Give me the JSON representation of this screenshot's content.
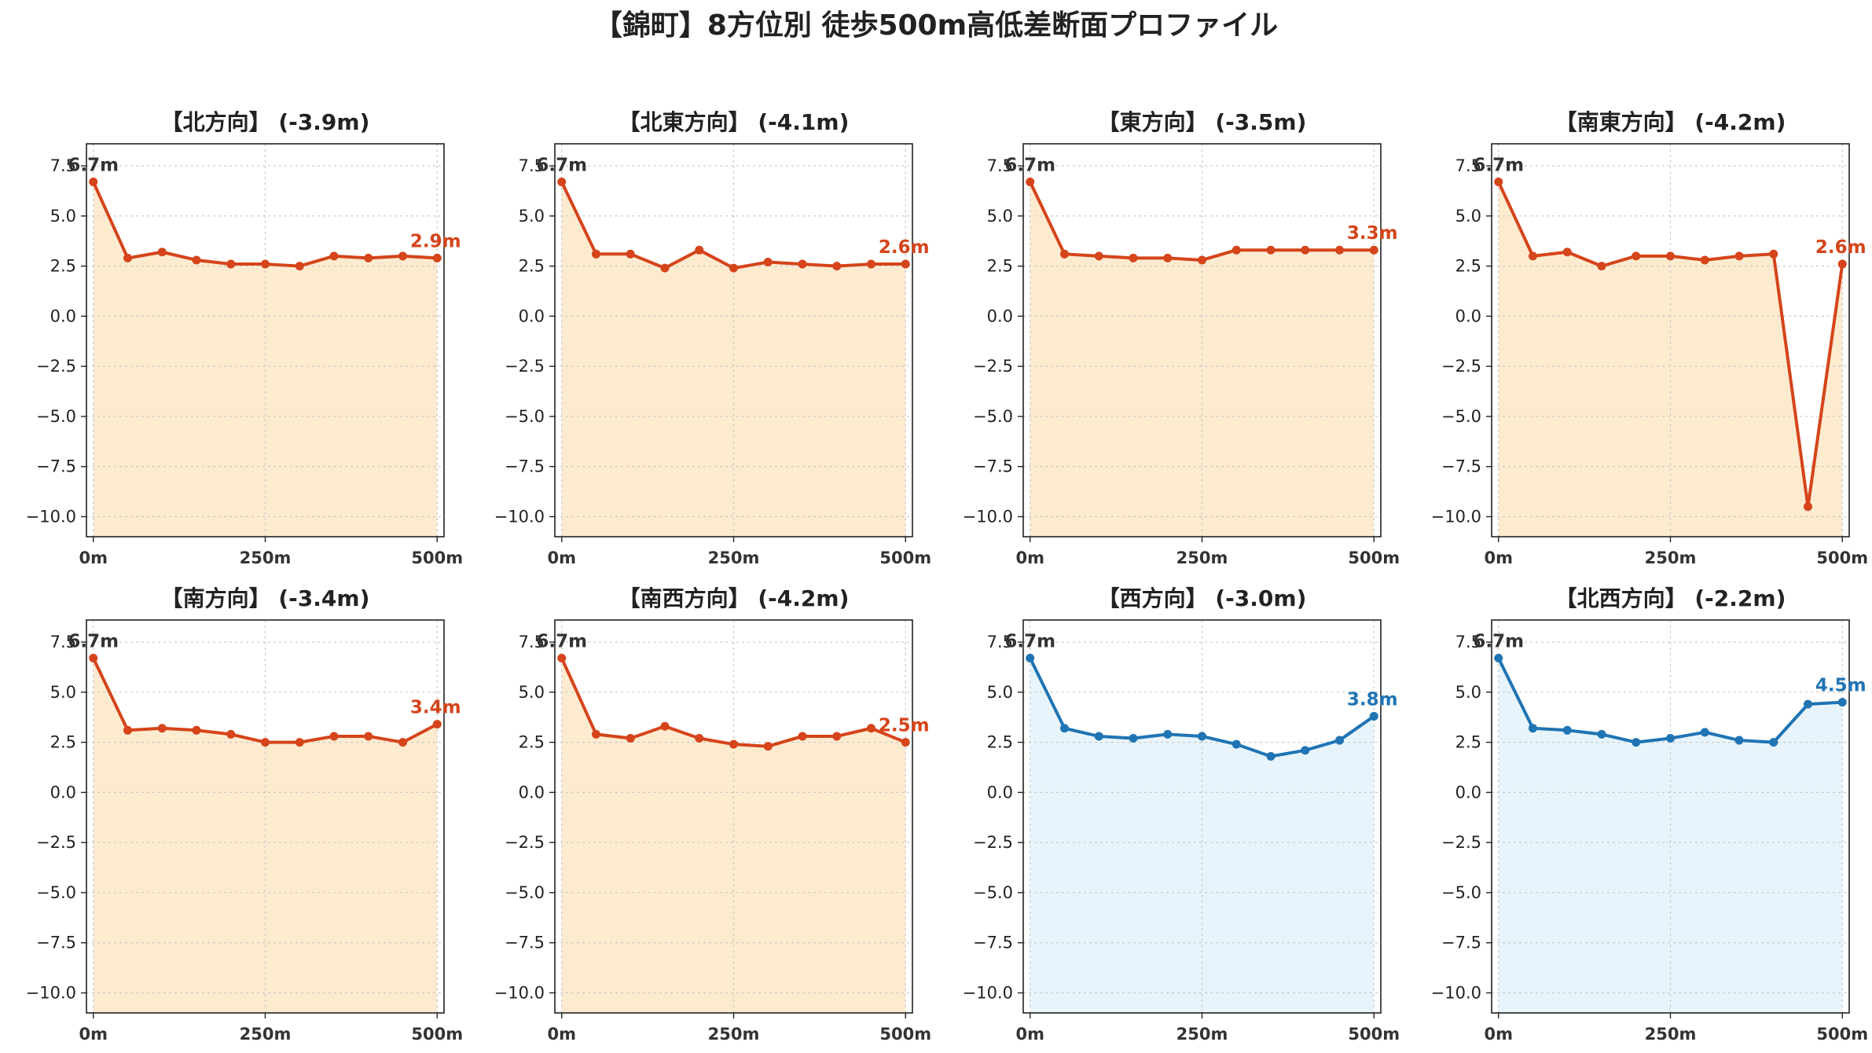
{
  "title": "【錦町】8方位別 徒歩500m高低差断面プロファイル",
  "colors": {
    "down_line": "#d5441a",
    "down_fill": "#fdebd0",
    "up_line": "#1f74b4",
    "up_fill": "#e8f4fb",
    "start_label": "#333333"
  },
  "chart_data": [
    {
      "type": "line",
      "title": "【北方向】 (-3.9m)",
      "trend": "down",
      "x": [
        0,
        50,
        100,
        150,
        200,
        250,
        300,
        350,
        400,
        450,
        500
      ],
      "values": [
        6.7,
        2.9,
        3.2,
        2.8,
        2.6,
        2.6,
        2.5,
        3.0,
        2.9,
        3.0,
        2.9
      ],
      "start_label": "6.7m",
      "end_label": "2.9m",
      "xticks": [
        "0m",
        "250m",
        "500m"
      ],
      "yticks": [
        "7.5",
        "5.0",
        "2.5",
        "0.0",
        "−2.5",
        "−5.0",
        "−7.5",
        "−10.0"
      ],
      "xlim": [
        -10,
        510
      ],
      "ylim": [
        -11,
        8.6
      ],
      "grid": true
    },
    {
      "type": "line",
      "title": "【北東方向】 (-4.1m)",
      "trend": "down",
      "x": [
        0,
        50,
        100,
        150,
        200,
        250,
        300,
        350,
        400,
        450,
        500
      ],
      "values": [
        6.7,
        3.1,
        3.1,
        2.4,
        3.3,
        2.4,
        2.7,
        2.6,
        2.5,
        2.6,
        2.6
      ],
      "start_label": "6.7m",
      "end_label": "2.6m",
      "xticks": [
        "0m",
        "250m",
        "500m"
      ],
      "yticks": [
        "7.5",
        "5.0",
        "2.5",
        "0.0",
        "−2.5",
        "−5.0",
        "−7.5",
        "−10.0"
      ],
      "xlim": [
        -10,
        510
      ],
      "ylim": [
        -11,
        8.6
      ],
      "grid": true
    },
    {
      "type": "line",
      "title": "【東方向】 (-3.5m)",
      "trend": "down",
      "x": [
        0,
        50,
        100,
        150,
        200,
        250,
        300,
        350,
        400,
        450,
        500
      ],
      "values": [
        6.7,
        3.1,
        3.0,
        2.9,
        2.9,
        2.8,
        3.3,
        3.3,
        3.3,
        3.3,
        3.3
      ],
      "start_label": "6.7m",
      "end_label": "3.3m",
      "xticks": [
        "0m",
        "250m",
        "500m"
      ],
      "yticks": [
        "7.5",
        "5.0",
        "2.5",
        "0.0",
        "−2.5",
        "−5.0",
        "−7.5",
        "−10.0"
      ],
      "xlim": [
        -10,
        510
      ],
      "ylim": [
        -11,
        8.6
      ],
      "grid": true
    },
    {
      "type": "line",
      "title": "【南東方向】 (-4.2m)",
      "trend": "down",
      "x": [
        0,
        50,
        100,
        150,
        200,
        250,
        300,
        350,
        400,
        450,
        500
      ],
      "values": [
        6.7,
        3.0,
        3.2,
        2.5,
        3.0,
        3.0,
        2.8,
        3.0,
        3.1,
        -9.5,
        2.6
      ],
      "start_label": "6.7m",
      "end_label": "2.6m",
      "xticks": [
        "0m",
        "250m",
        "500m"
      ],
      "yticks": [
        "7.5",
        "5.0",
        "2.5",
        "0.0",
        "−2.5",
        "−5.0",
        "−7.5",
        "−10.0"
      ],
      "xlim": [
        -10,
        510
      ],
      "ylim": [
        -11,
        8.6
      ],
      "grid": true
    },
    {
      "type": "line",
      "title": "【南方向】 (-3.4m)",
      "trend": "down",
      "x": [
        0,
        50,
        100,
        150,
        200,
        250,
        300,
        350,
        400,
        450,
        500
      ],
      "values": [
        6.7,
        3.1,
        3.2,
        3.1,
        2.9,
        2.5,
        2.5,
        2.8,
        2.8,
        2.5,
        3.4
      ],
      "start_label": "6.7m",
      "end_label": "3.4m",
      "xticks": [
        "0m",
        "250m",
        "500m"
      ],
      "yticks": [
        "7.5",
        "5.0",
        "2.5",
        "0.0",
        "−2.5",
        "−5.0",
        "−7.5",
        "−10.0"
      ],
      "xlim": [
        -10,
        510
      ],
      "ylim": [
        -11,
        8.6
      ],
      "grid": true
    },
    {
      "type": "line",
      "title": "【南西方向】 (-4.2m)",
      "trend": "down",
      "x": [
        0,
        50,
        100,
        150,
        200,
        250,
        300,
        350,
        400,
        450,
        500
      ],
      "values": [
        6.7,
        2.9,
        2.7,
        3.3,
        2.7,
        2.4,
        2.3,
        2.8,
        2.8,
        3.2,
        2.5
      ],
      "start_label": "6.7m",
      "end_label": "2.5m",
      "xticks": [
        "0m",
        "250m",
        "500m"
      ],
      "yticks": [
        "7.5",
        "5.0",
        "2.5",
        "0.0",
        "−2.5",
        "−5.0",
        "−7.5",
        "−10.0"
      ],
      "xlim": [
        -10,
        510
      ],
      "ylim": [
        -11,
        8.6
      ],
      "grid": true
    },
    {
      "type": "line",
      "title": "【西方向】 (-3.0m)",
      "trend": "up",
      "x": [
        0,
        50,
        100,
        150,
        200,
        250,
        300,
        350,
        400,
        450,
        500
      ],
      "values": [
        6.7,
        3.2,
        2.8,
        2.7,
        2.9,
        2.8,
        2.4,
        1.8,
        2.1,
        2.6,
        3.8
      ],
      "start_label": "6.7m",
      "end_label": "3.8m",
      "xticks": [
        "0m",
        "250m",
        "500m"
      ],
      "yticks": [
        "7.5",
        "5.0",
        "2.5",
        "0.0",
        "−2.5",
        "−5.0",
        "−7.5",
        "−10.0"
      ],
      "xlim": [
        -10,
        510
      ],
      "ylim": [
        -11,
        8.6
      ],
      "grid": true
    },
    {
      "type": "line",
      "title": "【北西方向】 (-2.2m)",
      "trend": "up",
      "x": [
        0,
        50,
        100,
        150,
        200,
        250,
        300,
        350,
        400,
        450,
        500
      ],
      "values": [
        6.7,
        3.2,
        3.1,
        2.9,
        2.5,
        2.7,
        3.0,
        2.6,
        2.5,
        4.4,
        4.5
      ],
      "start_label": "6.7m",
      "end_label": "4.5m",
      "xticks": [
        "0m",
        "250m",
        "500m"
      ],
      "yticks": [
        "7.5",
        "5.0",
        "2.5",
        "0.0",
        "−2.5",
        "−5.0",
        "−7.5",
        "−10.0"
      ],
      "xlim": [
        -10,
        510
      ],
      "ylim": [
        -11,
        8.6
      ],
      "grid": true
    }
  ]
}
